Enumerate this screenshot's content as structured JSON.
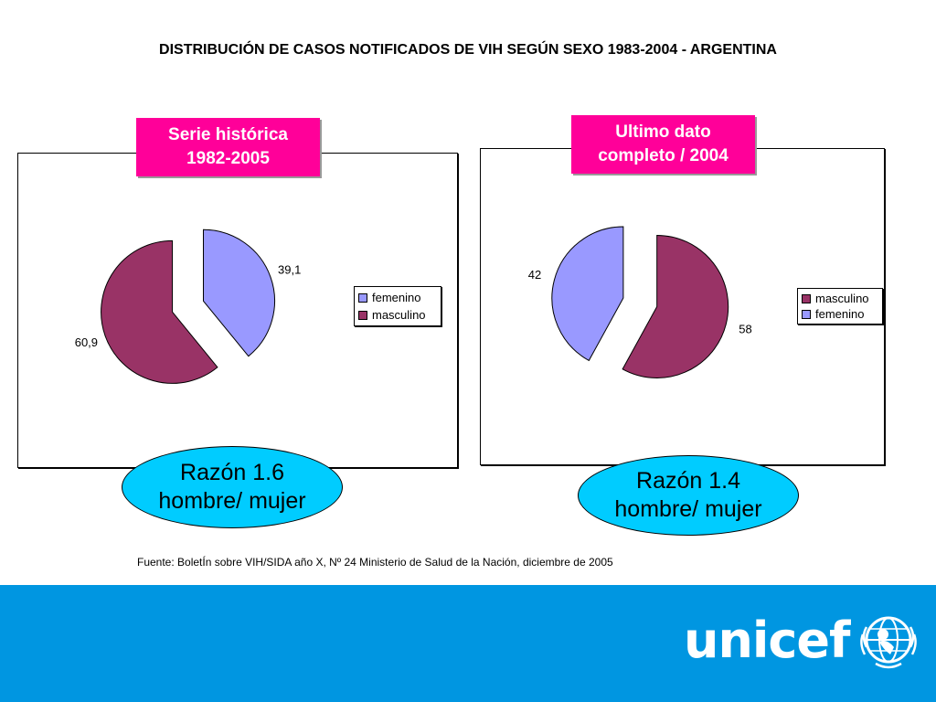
{
  "title": "DISTRIBUCIÓN DE CASOS NOTIFICADOS DE VIH SEGÚN SEXO 1983-2004  - ARGENTINA",
  "source": "Fuente: BoletÍn sobre VIH/SIDA año X, Nº 24 Ministerio de Salud de la Nación, diciembre de 2005",
  "logo": {
    "text": "unicef"
  },
  "colors": {
    "femenino": "#9999ff",
    "masculino": "#993366",
    "tag": "#ff0099",
    "ellipse": "#00ccff",
    "footer": "#0096e1"
  },
  "left_panel": {
    "tag_line1": "Serie histórica",
    "tag_line2": "1982-2005",
    "ratio_line1": "Razón 1.6",
    "ratio_line2": "hombre/ mujer"
  },
  "right_panel": {
    "tag_line1": "Ultimo dato",
    "tag_line2": "completo / 2004",
    "ratio_line1": "Razón 1.4",
    "ratio_line2": "hombre/ mujer"
  },
  "chart_data": [
    {
      "type": "pie",
      "slices": [
        {
          "name": "femenino",
          "value": 39.1,
          "label": "39,1"
        },
        {
          "name": "masculino",
          "value": 60.9,
          "label": "60,9"
        }
      ],
      "legend": [
        "femenino",
        "masculino"
      ],
      "legend_position": "right"
    },
    {
      "type": "pie",
      "slices": [
        {
          "name": "masculino",
          "value": 58,
          "label": "58"
        },
        {
          "name": "femenino",
          "value": 42,
          "label": "42"
        }
      ],
      "legend": [
        "masculino",
        "femenino"
      ],
      "legend_position": "right"
    }
  ]
}
